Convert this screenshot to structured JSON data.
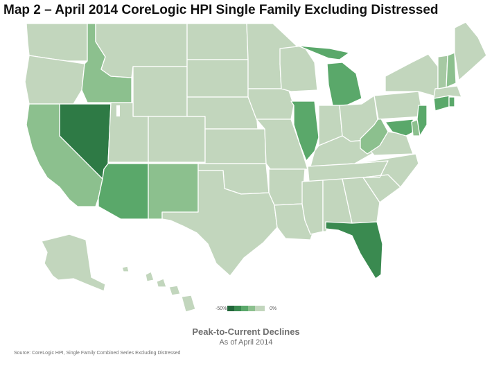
{
  "title": "Map 2 – April 2014 CoreLogic HPI Single Family Excluding Distressed",
  "legend": {
    "min_label": "-50%",
    "max_label": "0%",
    "colors": [
      "#22663a",
      "#3a8a50",
      "#5aa86a",
      "#8cc08e",
      "#c2d6bd"
    ]
  },
  "map_colors": {
    "base": "#c2d6bd",
    "light": "#a6c9a3",
    "medium": "#8cc08e",
    "strong": "#5aa86a",
    "darker": "#3a8a50",
    "darkest": "#2e7a45"
  },
  "chart_title": "Peak-to-Current Declines",
  "chart_subtitle": "As of April 2014",
  "source": "Source: CoreLogic HPI, Single Family Combined Series Excluding Distressed"
}
